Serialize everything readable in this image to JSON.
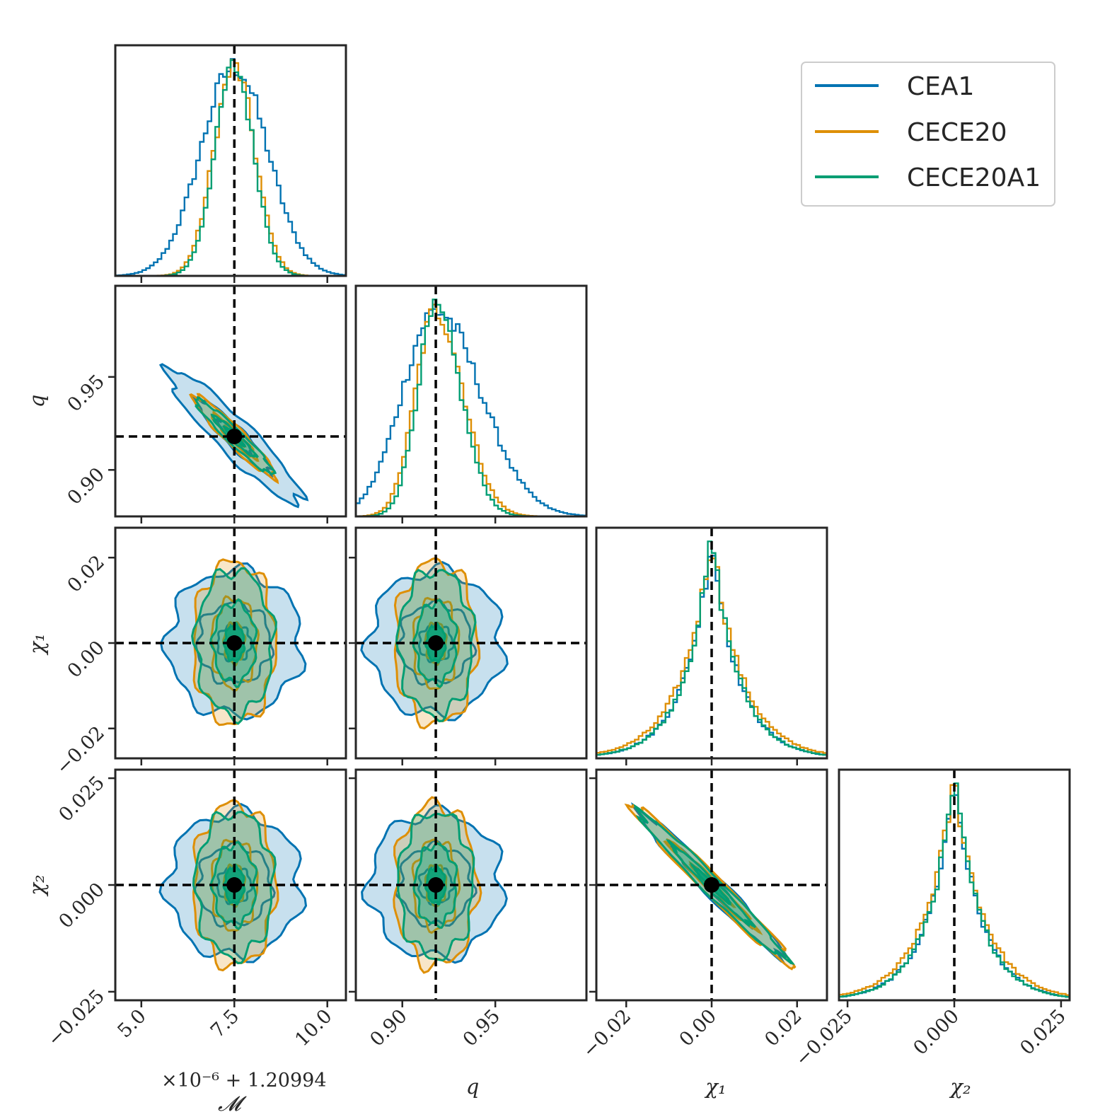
{
  "colors": {
    "CEA1": "#0173b2",
    "CECE20": "#de8f05",
    "CECE20A1": "#029e73",
    "truth": "#000000",
    "frame": "#262626"
  },
  "chart_data": {
    "type": "corner",
    "parameters": [
      {
        "key": "Mc",
        "label": "𝓜",
        "range": [
          4.3,
          10.5
        ],
        "ticks": [
          5.0,
          7.5,
          10.0
        ],
        "tick_labels": [
          "5.0",
          "7.5",
          "10.0"
        ],
        "offset_text": "×10⁻⁶ + 1.20994"
      },
      {
        "key": "q",
        "label": "q",
        "range": [
          0.875,
          0.999
        ],
        "ticks": [
          0.9,
          0.95
        ],
        "tick_labels": [
          "0.90",
          "0.95"
        ]
      },
      {
        "key": "chi1",
        "label": "χ₁",
        "range": [
          -0.027,
          0.027
        ],
        "ticks": [
          -0.02,
          0.0,
          0.02
        ],
        "tick_labels": [
          "−0.02",
          "0.00",
          "0.02"
        ]
      },
      {
        "key": "chi2",
        "label": "χ₂",
        "range": [
          -0.027,
          0.027
        ],
        "ticks": [
          -0.025,
          0.0,
          0.025
        ],
        "tick_labels": [
          "−0.025",
          "0.000",
          "0.025"
        ]
      }
    ],
    "truths": {
      "Mc": 7.5,
      "q": 0.918,
      "chi1": 0.0,
      "chi2": 0.0
    },
    "series": [
      {
        "name": "CEA1",
        "std": {
          "Mc": 0.9,
          "q": 0.018,
          "chi1": 0.0085,
          "chi2": 0.0085
        },
        "corr": {
          "Mc_q": -0.93,
          "chi1_chi2": -0.98
        }
      },
      {
        "name": "CECE20",
        "std": {
          "Mc": 0.55,
          "q": 0.011,
          "chi1": 0.0095,
          "chi2": 0.0095
        },
        "corr": {
          "Mc_q": -0.95,
          "chi1_chi2": -0.985
        }
      },
      {
        "name": "CECE20A1",
        "std": {
          "Mc": 0.52,
          "q": 0.01,
          "chi1": 0.0085,
          "chi2": 0.0085
        },
        "corr": {
          "Mc_q": -0.96,
          "chi1_chi2": -0.985
        }
      }
    ],
    "legend_placement": "top-right",
    "grid": false
  }
}
